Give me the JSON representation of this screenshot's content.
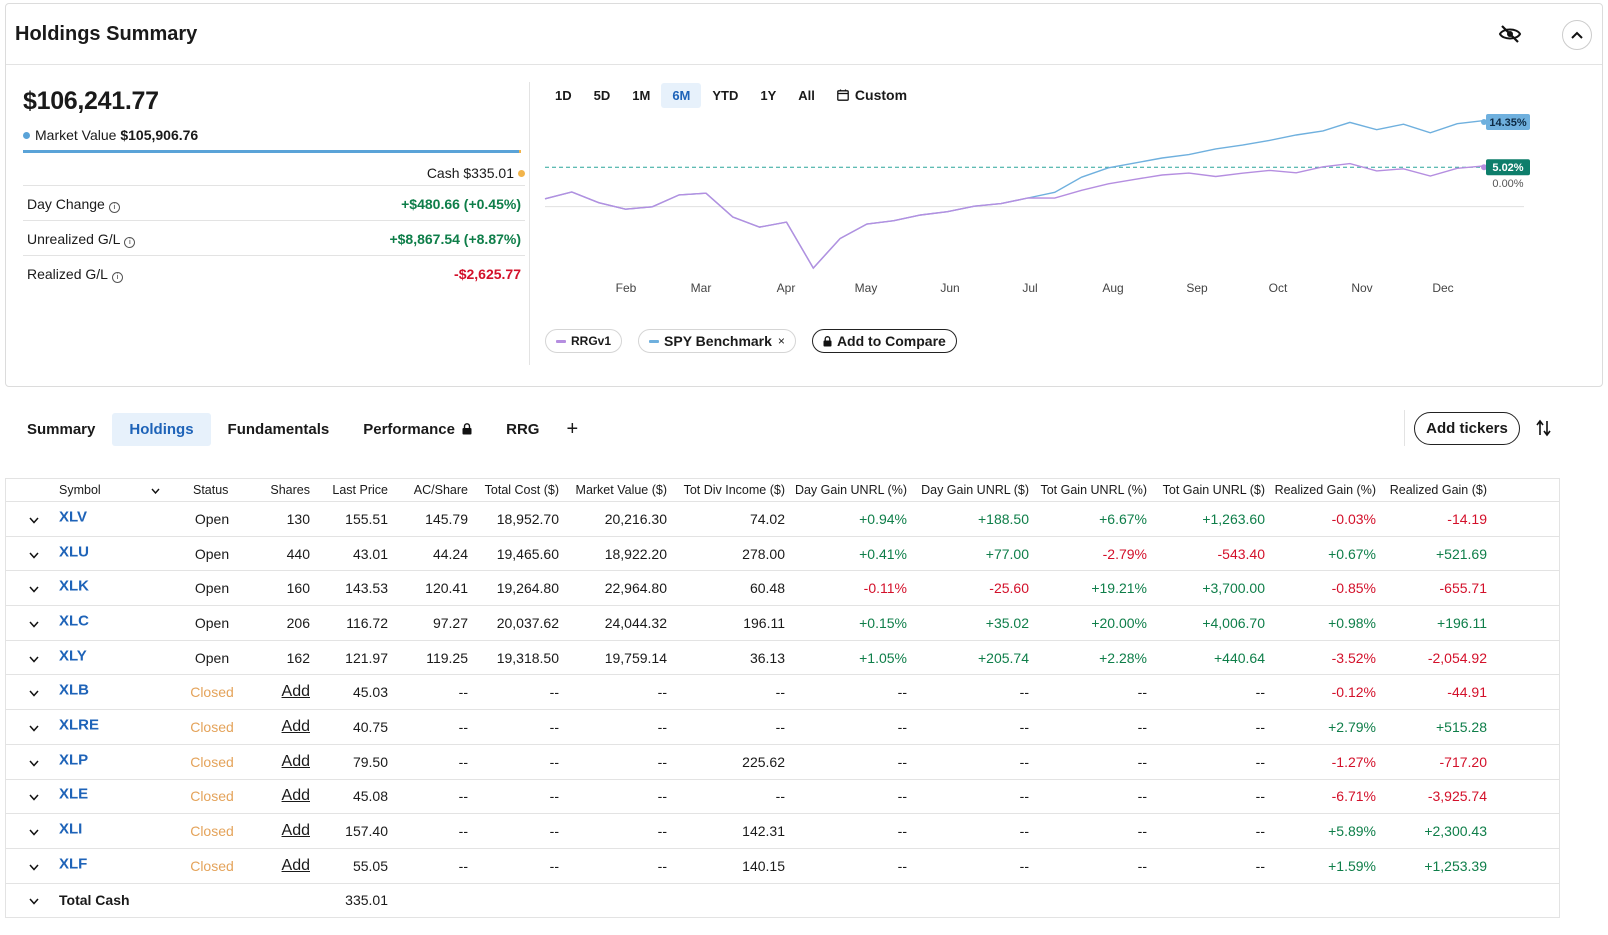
{
  "header": {
    "title": "Holdings Summary"
  },
  "summary": {
    "total_value": "$106,241.77",
    "market_value_label": "Market Value",
    "market_value": "$105,906.76",
    "cash_label": "Cash",
    "cash": "$335.01",
    "metrics": [
      {
        "label": "Day Change",
        "value": "+$480.66 (+0.45%)",
        "tone": "pos"
      },
      {
        "label": "Unrealized G/L",
        "value": "+$8,867.54 (+8.87%)",
        "tone": "pos"
      },
      {
        "label": "Realized G/L",
        "value": "-$2,625.77",
        "tone": "neg"
      }
    ]
  },
  "chart": {
    "ranges": [
      "1D",
      "5D",
      "1M",
      "6M",
      "YTD",
      "1Y",
      "All"
    ],
    "active_range": "6M",
    "custom_label": "Custom",
    "months": [
      "Feb",
      "Mar",
      "Apr",
      "May",
      "Jun",
      "Jul",
      "Aug",
      "Sep",
      "Oct",
      "Nov",
      "Dec"
    ],
    "badge_spy": "14.35%",
    "badge_rrg": "5.02%",
    "zero_label": "0.00%",
    "legend": {
      "rrg": "RRGv1",
      "spy": "SPY Benchmark",
      "remove": "×",
      "add": "Add to Compare"
    },
    "colors": {
      "spy": "#6fb0de",
      "rrg": "#b58ee0",
      "zero": "#2aa59a"
    }
  },
  "chart_data": {
    "type": "line",
    "x_labels": [
      "Feb",
      "Mar",
      "Apr",
      "May",
      "Jun",
      "Jul",
      "Aug",
      "Sep",
      "Oct",
      "Nov",
      "Dec"
    ],
    "series": [
      {
        "name": "RRGv1",
        "end_value": 5.02,
        "values": [
          -1.5,
          0.2,
          -2,
          -3.6,
          -3.4,
          -1,
          -0.4,
          -5,
          -7,
          -6.2,
          -16,
          -10,
          -6.8,
          -5.8,
          -4.5,
          -4,
          -3.2,
          -2.8,
          -1.5,
          -1.2,
          0.6,
          1.8,
          2.4,
          3.1,
          3.6,
          3.2,
          4.1,
          4.6,
          3.8,
          4.8,
          5.5,
          4.3,
          5.0,
          3.5,
          4.8,
          5.02
        ]
      },
      {
        "name": "SPY Benchmark",
        "end_value": 14.35,
        "values": [
          -1.5,
          0.2,
          -2,
          -3.6,
          -3.4,
          -1,
          -0.4,
          -5,
          -7,
          -6.2,
          -16,
          -10,
          -6.8,
          -5.8,
          -4.5,
          -4,
          -3.2,
          -2.8,
          -1.5,
          0.0,
          3.3,
          5.1,
          5.8,
          6.6,
          7.4,
          8.9,
          9.9,
          10.8,
          11.6,
          12.2,
          14.0,
          12.8,
          14.2,
          12.4,
          14.0,
          14.35
        ]
      }
    ],
    "ylim": [
      -17,
      16
    ]
  },
  "tabs": [
    {
      "label": "Summary",
      "active": false
    },
    {
      "label": "Holdings",
      "active": true
    },
    {
      "label": "Fundamentals",
      "active": false
    },
    {
      "label": "Performance",
      "active": false,
      "locked": true
    },
    {
      "label": "RRG",
      "active": false
    }
  ],
  "add_tab": "+",
  "add_tickers": "Add tickers",
  "table": {
    "headers": [
      "Symbol",
      "Status",
      "Shares",
      "Last Price",
      "AC/Share",
      "Total Cost ($)",
      "Market Value ($)",
      "Tot Div Income ($)",
      "Day Gain UNRL (%)",
      "Day Gain UNRL ($)",
      "Tot Gain UNRL (%)",
      "Tot Gain UNRL ($)",
      "Realized Gain (%)",
      "Realized Gain ($)"
    ],
    "rows": [
      [
        "XLV",
        "Open",
        "130",
        "155.51",
        "145.79",
        "18,952.70",
        "20,216.30",
        "74.02",
        "+0.94%",
        "+188.50",
        "+6.67%",
        "+1,263.60",
        "-0.03%",
        "-14.19"
      ],
      [
        "XLU",
        "Open",
        "440",
        "43.01",
        "44.24",
        "19,465.60",
        "18,922.20",
        "278.00",
        "+0.41%",
        "+77.00",
        "-2.79%",
        "-543.40",
        "+0.67%",
        "+521.69"
      ],
      [
        "XLK",
        "Open",
        "160",
        "143.53",
        "120.41",
        "19,264.80",
        "22,964.80",
        "60.48",
        "-0.11%",
        "-25.60",
        "+19.21%",
        "+3,700.00",
        "-0.85%",
        "-655.71"
      ],
      [
        "XLC",
        "Open",
        "206",
        "116.72",
        "97.27",
        "20,037.62",
        "24,044.32",
        "196.11",
        "+0.15%",
        "+35.02",
        "+20.00%",
        "+4,006.70",
        "+0.98%",
        "+196.11"
      ],
      [
        "XLY",
        "Open",
        "162",
        "121.97",
        "119.25",
        "19,318.50",
        "19,759.14",
        "36.13",
        "+1.05%",
        "+205.74",
        "+2.28%",
        "+440.64",
        "-3.52%",
        "-2,054.92"
      ],
      [
        "XLB",
        "Closed",
        "Add",
        "45.03",
        "--",
        "--",
        "--",
        "--",
        "--",
        "--",
        "--",
        "--",
        "-0.12%",
        "-44.91"
      ],
      [
        "XLRE",
        "Closed",
        "Add",
        "40.75",
        "--",
        "--",
        "--",
        "--",
        "--",
        "--",
        "--",
        "--",
        "+2.79%",
        "+515.28"
      ],
      [
        "XLP",
        "Closed",
        "Add",
        "79.50",
        "--",
        "--",
        "--",
        "225.62",
        "--",
        "--",
        "--",
        "--",
        "-1.27%",
        "-717.20"
      ],
      [
        "XLE",
        "Closed",
        "Add",
        "45.08",
        "--",
        "--",
        "--",
        "--",
        "--",
        "--",
        "--",
        "--",
        "-6.71%",
        "-3,925.74"
      ],
      [
        "XLI",
        "Closed",
        "Add",
        "157.40",
        "--",
        "--",
        "--",
        "142.31",
        "--",
        "--",
        "--",
        "--",
        "+5.89%",
        "+2,300.43"
      ],
      [
        "XLF",
        "Closed",
        "Add",
        "55.05",
        "--",
        "--",
        "--",
        "140.15",
        "--",
        "--",
        "--",
        "--",
        "+1.59%",
        "+1,253.39"
      ]
    ],
    "total_label": "Total Cash",
    "total_value": "335.01"
  }
}
